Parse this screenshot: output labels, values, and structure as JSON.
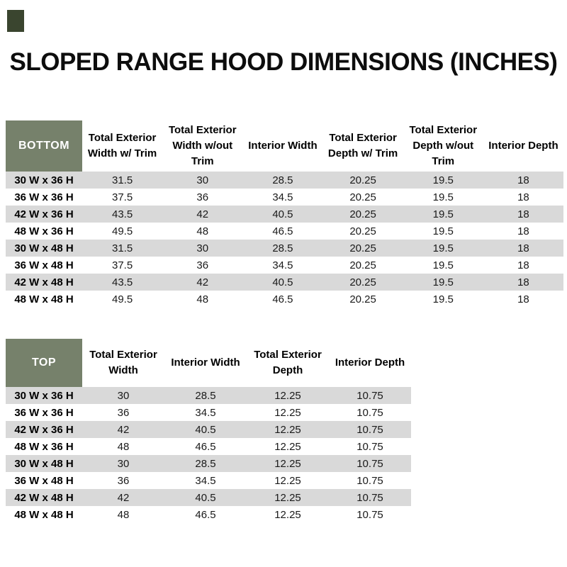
{
  "title": "SLOPED RANGE HOOD DIMENSIONS (INCHES)",
  "theme": {
    "header_green": "#76816B",
    "stripe_gray": "#D9D9D9",
    "swatch_dark_green": "#3A452F",
    "header_text": "#FFFFFF"
  },
  "tables": {
    "bottom": {
      "label": "BOTTOM",
      "columns": [
        "Total Exterior Width w/ Trim",
        "Total Exterior Width w/out Trim",
        "Interior Width",
        "Total Exterior Depth w/ Trim",
        "Total Exterior Depth w/out Trim",
        "Interior Depth"
      ],
      "rows": [
        {
          "size": "30 W x 36 H",
          "values": [
            "31.5",
            "30",
            "28.5",
            "20.25",
            "19.5",
            "18"
          ]
        },
        {
          "size": "36 W x 36 H",
          "values": [
            "37.5",
            "36",
            "34.5",
            "20.25",
            "19.5",
            "18"
          ]
        },
        {
          "size": "42 W x 36 H",
          "values": [
            "43.5",
            "42",
            "40.5",
            "20.25",
            "19.5",
            "18"
          ]
        },
        {
          "size": "48 W x 36 H",
          "values": [
            "49.5",
            "48",
            "46.5",
            "20.25",
            "19.5",
            "18"
          ]
        },
        {
          "size": "30 W x 48 H",
          "values": [
            "31.5",
            "30",
            "28.5",
            "20.25",
            "19.5",
            "18"
          ]
        },
        {
          "size": "36 W x 48 H",
          "values": [
            "37.5",
            "36",
            "34.5",
            "20.25",
            "19.5",
            "18"
          ]
        },
        {
          "size": "42 W x 48 H",
          "values": [
            "43.5",
            "42",
            "40.5",
            "20.25",
            "19.5",
            "18"
          ]
        },
        {
          "size": "48 W x 48 H",
          "values": [
            "49.5",
            "48",
            "46.5",
            "20.25",
            "19.5",
            "18"
          ]
        }
      ]
    },
    "top": {
      "label": "TOP",
      "columns": [
        "Total Exterior Width",
        "Interior Width",
        "Total Exterior Depth",
        "Interior Depth"
      ],
      "rows": [
        {
          "size": "30 W x 36 H",
          "values": [
            "30",
            "28.5",
            "12.25",
            "10.75"
          ]
        },
        {
          "size": "36 W x 36 H",
          "values": [
            "36",
            "34.5",
            "12.25",
            "10.75"
          ]
        },
        {
          "size": "42 W x 36 H",
          "values": [
            "42",
            "40.5",
            "12.25",
            "10.75"
          ]
        },
        {
          "size": "48 W x 36 H",
          "values": [
            "48",
            "46.5",
            "12.25",
            "10.75"
          ]
        },
        {
          "size": "30 W x 48 H",
          "values": [
            "30",
            "28.5",
            "12.25",
            "10.75"
          ]
        },
        {
          "size": "36 W x 48 H",
          "values": [
            "36",
            "34.5",
            "12.25",
            "10.75"
          ]
        },
        {
          "size": "42 W x 48 H",
          "values": [
            "42",
            "40.5",
            "12.25",
            "10.75"
          ]
        },
        {
          "size": "48 W x 48 H",
          "values": [
            "48",
            "46.5",
            "12.25",
            "10.75"
          ]
        }
      ]
    }
  }
}
